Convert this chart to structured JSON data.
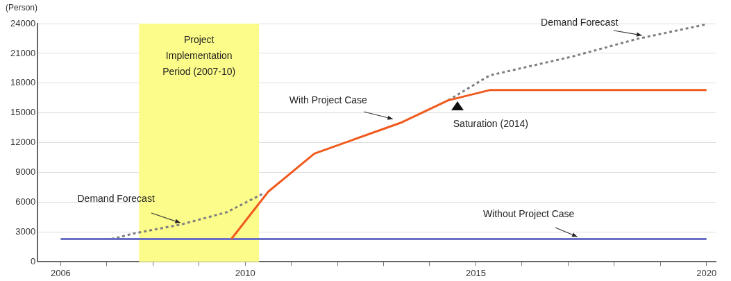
{
  "chart_data": {
    "type": "line",
    "ylabel": "(Person)",
    "marker": "none",
    "grid": "y",
    "xlim": [
      2005.5,
      2020.2
    ],
    "xticks": [
      2006,
      {
        "value": 2007,
        "label": null
      },
      {
        "value": 2008,
        "label": null
      },
      {
        "value": 2009,
        "label": null
      },
      2010,
      {
        "value": 2011,
        "label": null
      },
      {
        "value": 2012,
        "label": null
      },
      {
        "value": 2013,
        "label": null
      },
      {
        "value": 2014,
        "label": null
      },
      2015,
      {
        "value": 2016,
        "label": null
      },
      {
        "value": 2017,
        "label": null
      },
      {
        "value": 2018,
        "label": null
      },
      {
        "value": 2019,
        "label": null
      },
      2020
    ],
    "ylim": [
      0,
      24000
    ],
    "yticks": [
      0,
      3000,
      6000,
      9000,
      12000,
      15000,
      18000,
      21000,
      24000
    ],
    "series": [
      {
        "color": "#7f7f7f",
        "line_style": "dotted",
        "x": [
          2007.1,
          2007.6,
          2008.6,
          2009.6,
          2010.4,
          2011.5,
          2013.4,
          2014.4,
          2015.3,
          2017.1,
          2018.5,
          2020
        ],
        "values": [
          2300,
          2870,
          3750,
          5000,
          6900,
          null,
          null,
          16270,
          18780,
          20690,
          22460,
          23930
        ]
      },
      {
        "color": "#6b70c4",
        "line_style": "solid",
        "x": [
          2006,
          2020
        ],
        "values": [
          2300,
          2300
        ]
      },
      {
        "color": "#f05a1e",
        "line_style": "solid",
        "x": [
          2009.7,
          2010.5,
          2011.5,
          2013.4,
          2014.4,
          2015.3,
          2020
        ],
        "values": [
          2300,
          7070,
          10900,
          14060,
          16270,
          17300,
          17300
        ]
      }
    ],
    "bands": [
      {
        "axis": "x",
        "from": 2007.7,
        "to": 2010.3,
        "label": "Project Implementation Period (2007-10)",
        "color": "#fcfc8a"
      }
    ],
    "annotations": [
      {
        "text": "Demand Forecast",
        "x": 2008.6,
        "y": 3750
      },
      {
        "text": "With Project Case",
        "x": 2013.2,
        "y": 14200
      },
      {
        "text": "Saturation (2014)",
        "x": 2014.6,
        "y": 16300
      },
      {
        "text": "Demand Forecast",
        "x": 2018.6,
        "y": 22600
      },
      {
        "text": "Without Project Case",
        "x": 2017.2,
        "y": 2300
      }
    ]
  }
}
